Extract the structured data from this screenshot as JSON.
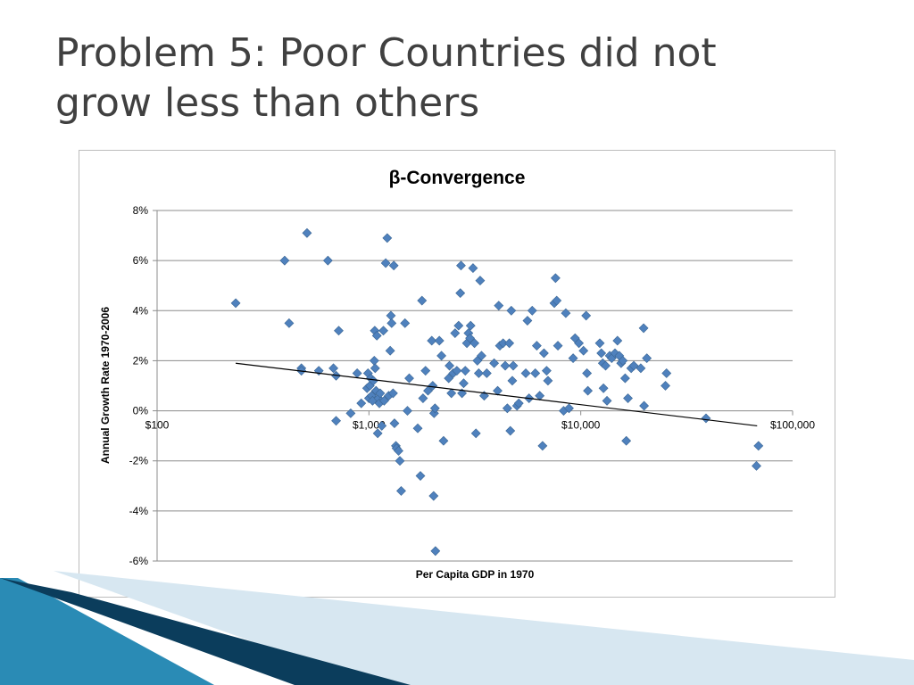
{
  "slide": {
    "title_line1": "Problem 5: Poor Countries did not",
    "title_line2": "grow less than others"
  },
  "colors": {
    "marker": "#4f81bd",
    "marker_edge": "#3a6593",
    "trendline": "#000000",
    "gridline": "#8c8c8c",
    "title_text": "#404040",
    "deco_dark": "#0b3d5c",
    "deco_mid": "#2a8bb5",
    "deco_light": "#d7e7f1"
  },
  "chart_data": {
    "type": "scatter",
    "title": "β-Convergence",
    "xlabel": "Per Capita GDP in 1970",
    "ylabel": "Annual Growth Rate 1970-2006",
    "x_scale": "log",
    "xlim": [
      100,
      100000
    ],
    "ylim": [
      -0.06,
      0.08
    ],
    "x_ticks": [
      100,
      1000,
      10000,
      100000
    ],
    "x_tick_labels": [
      "$100",
      "$1,000",
      "$10,000",
      "$100,000"
    ],
    "y_ticks": [
      -0.06,
      -0.04,
      -0.02,
      0,
      0.02,
      0.04,
      0.06,
      0.08
    ],
    "y_tick_labels": [
      "-6%",
      "-4%",
      "-2%",
      "0%",
      "2%",
      "4%",
      "6%",
      "8%"
    ],
    "grid": "horizontal",
    "legend": "none",
    "marker": "diamond",
    "trendline": {
      "x": [
        235,
        68000
      ],
      "y": [
        0.019,
        -0.006
      ]
    },
    "points": [
      [
        235,
        0.043
      ],
      [
        400,
        0.06
      ],
      [
        420,
        0.035
      ],
      [
        480,
        0.017
      ],
      [
        480,
        0.016
      ],
      [
        510,
        0.071
      ],
      [
        580,
        0.016
      ],
      [
        640,
        0.06
      ],
      [
        680,
        0.017
      ],
      [
        700,
        -0.004
      ],
      [
        700,
        0.014
      ],
      [
        720,
        0.032
      ],
      [
        820,
        -0.001
      ],
      [
        880,
        0.015
      ],
      [
        920,
        0.003
      ],
      [
        980,
        0.009
      ],
      [
        990,
        0.015
      ],
      [
        1000,
        0.005
      ],
      [
        1010,
        0.01
      ],
      [
        1020,
        0.013
      ],
      [
        1030,
        0.006
      ],
      [
        1040,
        0.004
      ],
      [
        1050,
        0.012
      ],
      [
        1060,
        0.02
      ],
      [
        1065,
        0.032
      ],
      [
        1070,
        0.017
      ],
      [
        1080,
        0.008
      ],
      [
        1090,
        0.03
      ],
      [
        1100,
        -0.009
      ],
      [
        1110,
        0.005
      ],
      [
        1120,
        0.003
      ],
      [
        1130,
        0.007
      ],
      [
        1150,
        -0.006
      ],
      [
        1170,
        0.032
      ],
      [
        1180,
        0.004
      ],
      [
        1200,
        0.059
      ],
      [
        1220,
        0.069
      ],
      [
        1240,
        0.006
      ],
      [
        1260,
        0.024
      ],
      [
        1270,
        0.038
      ],
      [
        1280,
        0.035
      ],
      [
        1300,
        0.007
      ],
      [
        1310,
        0.058
      ],
      [
        1320,
        -0.005
      ],
      [
        1340,
        -0.014
      ],
      [
        1350,
        -0.015
      ],
      [
        1380,
        -0.016
      ],
      [
        1400,
        -0.02
      ],
      [
        1420,
        -0.032
      ],
      [
        1480,
        0.035
      ],
      [
        1520,
        0.0
      ],
      [
        1550,
        0.013
      ],
      [
        1700,
        -0.007
      ],
      [
        1750,
        -0.026
      ],
      [
        1780,
        0.044
      ],
      [
        1800,
        0.005
      ],
      [
        1850,
        0.016
      ],
      [
        1900,
        0.008
      ],
      [
        1980,
        0.028
      ],
      [
        2000,
        0.01
      ],
      [
        2020,
        -0.034
      ],
      [
        2030,
        -0.001
      ],
      [
        2050,
        0.001
      ],
      [
        2060,
        -0.056
      ],
      [
        2150,
        0.028
      ],
      [
        2200,
        0.022
      ],
      [
        2250,
        -0.012
      ],
      [
        2380,
        0.013
      ],
      [
        2400,
        0.018
      ],
      [
        2450,
        0.007
      ],
      [
        2500,
        0.015
      ],
      [
        2550,
        0.031
      ],
      [
        2600,
        0.016
      ],
      [
        2650,
        0.034
      ],
      [
        2700,
        0.047
      ],
      [
        2720,
        0.058
      ],
      [
        2750,
        0.007
      ],
      [
        2800,
        0.011
      ],
      [
        2850,
        0.016
      ],
      [
        2900,
        0.027
      ],
      [
        2950,
        0.031
      ],
      [
        3000,
        0.029
      ],
      [
        3020,
        0.034
      ],
      [
        3100,
        0.057
      ],
      [
        3150,
        0.027
      ],
      [
        3200,
        -0.009
      ],
      [
        3250,
        0.02
      ],
      [
        3300,
        0.015
      ],
      [
        3350,
        0.052
      ],
      [
        3400,
        0.022
      ],
      [
        3500,
        0.006
      ],
      [
        3600,
        0.015
      ],
      [
        3900,
        0.019
      ],
      [
        4050,
        0.008
      ],
      [
        4100,
        0.042
      ],
      [
        4150,
        0.026
      ],
      [
        4300,
        0.027
      ],
      [
        4400,
        0.018
      ],
      [
        4500,
        0.001
      ],
      [
        4600,
        0.027
      ],
      [
        4650,
        -0.008
      ],
      [
        4700,
        0.04
      ],
      [
        4750,
        0.012
      ],
      [
        4800,
        0.018
      ],
      [
        5000,
        0.002
      ],
      [
        5100,
        0.003
      ],
      [
        5500,
        0.015
      ],
      [
        5600,
        0.036
      ],
      [
        5700,
        0.005
      ],
      [
        5900,
        0.04
      ],
      [
        6100,
        0.015
      ],
      [
        6200,
        0.026
      ],
      [
        6400,
        0.006
      ],
      [
        6600,
        -0.014
      ],
      [
        6700,
        0.023
      ],
      [
        6900,
        0.016
      ],
      [
        7000,
        0.012
      ],
      [
        7500,
        0.043
      ],
      [
        7600,
        0.053
      ],
      [
        7700,
        0.044
      ],
      [
        7800,
        0.026
      ],
      [
        8300,
        0.0
      ],
      [
        8500,
        0.039
      ],
      [
        8800,
        0.001
      ],
      [
        9200,
        0.021
      ],
      [
        9400,
        0.029
      ],
      [
        9800,
        0.027
      ],
      [
        10300,
        0.024
      ],
      [
        10600,
        0.038
      ],
      [
        10700,
        0.015
      ],
      [
        10800,
        0.008
      ],
      [
        12300,
        0.027
      ],
      [
        12500,
        0.023
      ],
      [
        12700,
        0.019
      ],
      [
        12800,
        0.009
      ],
      [
        13100,
        0.018
      ],
      [
        13300,
        0.004
      ],
      [
        13700,
        0.022
      ],
      [
        14000,
        0.021
      ],
      [
        14500,
        0.023
      ],
      [
        14900,
        0.028
      ],
      [
        15200,
        0.022
      ],
      [
        15500,
        0.019
      ],
      [
        15800,
        0.02
      ],
      [
        16200,
        0.013
      ],
      [
        16400,
        -0.012
      ],
      [
        16700,
        0.005
      ],
      [
        17300,
        0.017
      ],
      [
        17800,
        0.018
      ],
      [
        19200,
        0.017
      ],
      [
        19800,
        0.033
      ],
      [
        19900,
        0.002
      ],
      [
        20500,
        0.021
      ],
      [
        25100,
        0.01
      ],
      [
        25400,
        0.015
      ],
      [
        39000,
        -0.003
      ],
      [
        67500,
        -0.022
      ],
      [
        69000,
        -0.014
      ]
    ]
  }
}
